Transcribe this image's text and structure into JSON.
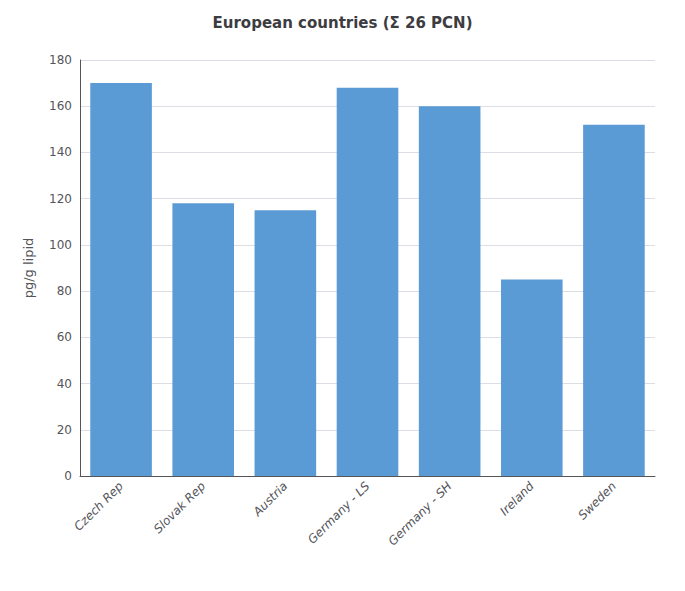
{
  "chart_data": {
    "type": "bar",
    "title": "European countries (Σ 26 PCN)",
    "categories": [
      "Czech Rep",
      "Slovak Rep",
      "Austria",
      "Germany - LS",
      "Germany - SH",
      "Ireland",
      "Sweden"
    ],
    "values": [
      170,
      118,
      115,
      168,
      160,
      85,
      152
    ],
    "color": "#5b9bd5",
    "ylabel": "pg/g lipid",
    "ylim": [
      0,
      180
    ],
    "yticks": [
      0,
      20,
      40,
      60,
      80,
      100,
      120,
      140,
      160,
      180
    ],
    "grid": true
  }
}
